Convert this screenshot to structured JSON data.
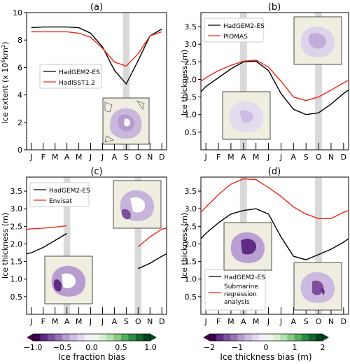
{
  "months": [
    "J",
    "F",
    "M",
    "A",
    "M",
    "J",
    "J",
    "A",
    "S",
    "O",
    "N",
    "D"
  ],
  "colors": {
    "model": "#000000",
    "obs": "#e8291c",
    "shade": "#d9d9d9"
  },
  "chart_data": [
    {
      "type": "line",
      "panel_label": "(a)",
      "ylabel": "Ice extent (x 10",
      "ylabel_unit": "6",
      "ylabel_tail": "km",
      "ylabel_unit2": "2",
      "ylabel_end": ")",
      "ylim": [
        0,
        10
      ],
      "yticks": [
        0,
        2,
        4,
        6,
        8,
        10
      ],
      "ytick_labels": [
        "0",
        "2",
        "4",
        "6",
        "8",
        "10"
      ],
      "legend": [
        "HadGEM2-ES",
        "HadISST1.2"
      ],
      "shade_month": 9,
      "series": [
        {
          "name": "HadGEM2-ES",
          "color": "#000000",
          "x": [
            1,
            2,
            3,
            4,
            5,
            6,
            7,
            8,
            9,
            10,
            11,
            12
          ],
          "values": [
            8.9,
            8.95,
            8.95,
            8.95,
            8.9,
            8.5,
            7.5,
            5.8,
            4.8,
            6.5,
            8.3,
            8.8
          ]
        },
        {
          "name": "HadISST1.2",
          "color": "#e8291c",
          "x": [
            1,
            2,
            3,
            4,
            5,
            6,
            7,
            8,
            9,
            10,
            11,
            12
          ],
          "values": [
            8.6,
            8.6,
            8.6,
            8.6,
            8.5,
            8.2,
            7.4,
            6.4,
            6.1,
            7.0,
            8.3,
            8.6
          ]
        }
      ]
    },
    {
      "type": "line",
      "panel_label": "(b)",
      "ylabel": "Ice thickness (m)",
      "ylim": [
        0,
        3.9
      ],
      "yticks": [
        0.5,
        1.0,
        1.5,
        2.0,
        2.5,
        3.0,
        3.5
      ],
      "ytick_labels": [
        "0.5",
        "1.0",
        "1.5",
        "2.0",
        "2.5",
        "3.0",
        "3.5"
      ],
      "legend": [
        "HadGEM2-ES",
        "PIOMAS"
      ],
      "shade_months": [
        4,
        10
      ],
      "series": [
        {
          "name": "HadGEM2-ES",
          "color": "#000000",
          "x": [
            0.6,
            1,
            2,
            3,
            4,
            5,
            6,
            7,
            8,
            9,
            10,
            11,
            12,
            12.4
          ],
          "values": [
            1.65,
            1.8,
            2.05,
            2.3,
            2.5,
            2.52,
            2.25,
            1.6,
            1.15,
            1.0,
            1.05,
            1.3,
            1.6,
            1.7
          ]
        },
        {
          "name": "PIOMAS",
          "color": "#e8291c",
          "x": [
            0.6,
            1,
            2,
            3,
            4,
            5,
            6,
            7,
            8,
            9,
            10,
            11,
            12,
            12.4
          ],
          "values": [
            1.95,
            2.05,
            2.25,
            2.4,
            2.52,
            2.55,
            2.35,
            1.95,
            1.5,
            1.4,
            1.5,
            1.7,
            1.9,
            1.98
          ]
        }
      ]
    },
    {
      "type": "line",
      "panel_label": "(c)",
      "ylabel": "Ice thickness (m)",
      "ylim": [
        0,
        3.9
      ],
      "yticks": [
        0.5,
        1.0,
        1.5,
        2.0,
        2.5,
        3.0,
        3.5
      ],
      "ytick_labels": [
        "0.5",
        "1.0",
        "1.5",
        "2.0",
        "2.5",
        "3.0",
        "3.5"
      ],
      "legend": [
        "HadGEM2-ES",
        "Envisat"
      ],
      "shade_months": [
        4,
        10
      ],
      "series": [
        {
          "name": "HadGEM2-ES",
          "color": "#000000",
          "x": [
            0.6,
            1,
            2,
            3,
            4
          ],
          "values": [
            1.72,
            1.75,
            1.9,
            2.1,
            2.3
          ]
        },
        {
          "name": "HadGEM2-ES",
          "color": "#000000",
          "x": [
            10,
            11,
            12,
            12.4
          ],
          "values": [
            1.3,
            1.45,
            1.65,
            1.72
          ]
        },
        {
          "name": "Envisat",
          "color": "#e8291c",
          "x": [
            0.6,
            1,
            2,
            3,
            4
          ],
          "values": [
            2.42,
            2.43,
            2.45,
            2.48,
            2.52
          ]
        },
        {
          "name": "Envisat",
          "color": "#e8291c",
          "x": [
            10,
            11,
            12,
            12.4
          ],
          "values": [
            1.92,
            2.2,
            2.42,
            2.45
          ]
        }
      ]
    },
    {
      "type": "line",
      "panel_label": "(d)",
      "ylabel": "Ice thickness (m)",
      "ylim": [
        0,
        3.9
      ],
      "yticks": [
        0.5,
        1.0,
        1.5,
        2.0,
        2.5,
        3.0,
        3.5
      ],
      "ytick_labels": [
        "0.5",
        "1.0",
        "1.5",
        "2.0",
        "2.5",
        "3.0",
        "3.5"
      ],
      "legend": [
        "HadGEM2-ES",
        "Submarine",
        "regression",
        "analysis"
      ],
      "shade_months": [
        4,
        10
      ],
      "series": [
        {
          "name": "HadGEM2-ES",
          "color": "#000000",
          "x": [
            0.6,
            1,
            2,
            3,
            4,
            5,
            6,
            7,
            8,
            9,
            10,
            11,
            12,
            12.4
          ],
          "values": [
            2.15,
            2.3,
            2.6,
            2.85,
            2.95,
            3.0,
            2.85,
            2.2,
            1.65,
            1.55,
            1.7,
            1.85,
            2.05,
            2.15
          ]
        },
        {
          "name": "Submarine regression analysis",
          "color": "#e8291c",
          "x": [
            0.6,
            1,
            2,
            3,
            4,
            5,
            6,
            7,
            8,
            9,
            10,
            11,
            12,
            12.4
          ],
          "values": [
            2.9,
            3.05,
            3.4,
            3.7,
            3.85,
            3.83,
            3.6,
            3.35,
            3.05,
            2.85,
            2.72,
            2.72,
            2.9,
            2.95
          ]
        }
      ]
    },
    {
      "type": "colorbar",
      "label": "Ice fraction bias",
      "tick_labels": [
        "−1.0",
        "−0.5",
        "0.0",
        "0.5",
        "1.0"
      ],
      "range": [
        -1.0,
        1.0
      ]
    },
    {
      "type": "colorbar",
      "label": "Ice thickness bias (m)",
      "tick_labels": [
        "−2",
        "−1",
        "0",
        "1",
        "2"
      ],
      "range": [
        -2,
        2
      ]
    }
  ]
}
